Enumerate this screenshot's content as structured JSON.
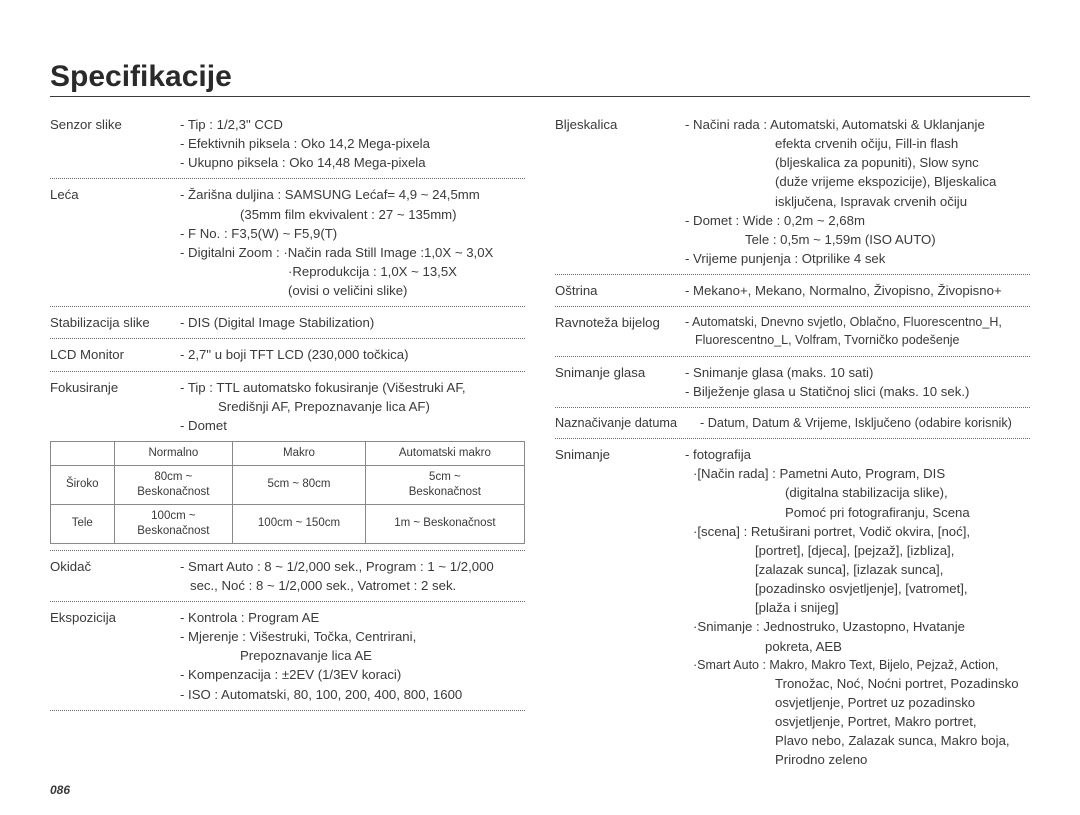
{
  "title": "Specifikacije",
  "page_number": "086",
  "left": {
    "sensor": {
      "label": "Senzor slike",
      "l1": "- Tip : 1/2,3\" CCD",
      "l2": "- Efektivnih piksela : Oko 14,2 Mega-pixela",
      "l3": "- Ukupno piksela : Oko 14,48 Mega-pixela"
    },
    "lens": {
      "label": "Leća",
      "l1": "- Žarišna duljina : SAMSUNG Lećaf= 4,9 ~ 24,5mm",
      "l1b": "(35mm film ekvivalent : 27 ~ 135mm)",
      "l2": "- F No. : F3,5(W) ~ F5,9(T)",
      "l3": "- Digitalni Zoom : ·Način rada Still Image  :1,0X ~ 3,0X",
      "l3b": "·Reprodukcija : 1,0X ~ 13,5X",
      "l3c": "(ovisi o veličini slike)"
    },
    "stab": {
      "label": "Stabilizacija slike",
      "l1": "- DIS (Digital Image Stabilization)"
    },
    "lcd": {
      "label": "LCD Monitor",
      "l1": "- 2,7\" u boji TFT LCD (230,000 točkica)"
    },
    "focus": {
      "label": "Fokusiranje",
      "l1": "- Tip : TTL automatsko fokusiranje (Višestruki AF,",
      "l1b": "Središnji AF, Prepoznavanje lica AF)",
      "l2": "- Domet"
    },
    "focus_table": {
      "headers": [
        "",
        "Normalno",
        "Makro",
        "Automatski makro"
      ],
      "rows": [
        [
          "Široko",
          "80cm ~\nBeskonačnost",
          "5cm ~ 80cm",
          "5cm ~\nBeskonačnost"
        ],
        [
          "Tele",
          "100cm ~\nBeskonačnost",
          "100cm ~ 150cm",
          "1m ~ Beskonačnost"
        ]
      ]
    },
    "shutter": {
      "label": "Okidač",
      "l1": "- Smart Auto : 8 ~ 1/2,000 sek., Program : 1 ~ 1/2,000",
      "l1b": "sec., Noć : 8 ~ 1/2,000 sek., Vatromet : 2 sek."
    },
    "expo": {
      "label": "Ekspozicija",
      "l1": "- Kontrola : Program AE",
      "l2": "- Mjerenje : Višestruki, Točka, Centrirani,",
      "l2b": "Prepoznavanje lica AE",
      "l3": "- Kompenzacija : ±2EV (1/3EV koraci)",
      "l4": "- ISO : Automatski, 80, 100, 200, 400, 800, 1600"
    }
  },
  "right": {
    "flash": {
      "label": "Bljeskalica",
      "l1": "- Načini rada : Automatski, Automatski & Uklanjanje",
      "l1b": "efekta crvenih očiju, Fill-in flash",
      "l1c": "(bljeskalica za popuniti), Slow sync",
      "l1d": "(duže vrijeme ekspozicije), Bljeskalica",
      "l1e": "isključena, Ispravak crvenih očiju",
      "l2": "- Domet : Wide : 0,2m ~ 2,68m",
      "l2b": "Tele : 0,5m ~ 1,59m (ISO AUTO)",
      "l3": "- Vrijeme punjenja : Otprilike 4 sek"
    },
    "sharp": {
      "label": "Oštrina",
      "l1": "- Mekano+, Mekano, Normalno, Živopisno, Živopisno+"
    },
    "wb": {
      "label": "Ravnoteža bijelog",
      "l1": "- Automatski, Dnevno svjetlo, Oblačno, Fluorescentno_H,",
      "l1b": "Fluorescentno_L, Volfram, Tvorničko podešenje"
    },
    "voice": {
      "label": "Snimanje glasa",
      "l1": "- Snimanje glasa (maks. 10 sati)",
      "l2": "- Bilježenje glasa u Statičnoj slici (maks. 10 sek.)"
    },
    "date": {
      "label": "Naznačivanje datuma",
      "l1": "- Datum, Datum & Vrijeme, Isključeno (odabire korisnik)"
    },
    "shoot": {
      "label": "Snimanje",
      "l1": "- fotografija",
      "l2": "·[Način rada] : Pametni Auto, Program, DIS",
      "l2b": "(digitalna stabilizacija slike),",
      "l2c": "Pomoć pri fotografiranju, Scena",
      "l3": "·[scena] : Retuširani portret, Vodič okvira, [noć],",
      "l3b": "[portret], [djeca], [pejzaž], [izbliza],",
      "l3c": "[zalazak sunca], [izlazak sunca],",
      "l3d": "[pozadinsko osvjetljenje], [vatromet],",
      "l3e": "[plaža i snijeg]",
      "l4": "·Snimanje : Jednostruko, Uzastopno, Hvatanje",
      "l4b": "pokreta, AEB",
      "l5": "·Smart Auto : Makro, Makro Text, Bijelo, Pejzaž, Action,",
      "l5b": "Tronožac, Noć, Noćni portret, Pozadinsko",
      "l5c": "osvjetljenje, Portret uz pozadinsko",
      "l5d": "osvjetljenje, Portret, Makro portret,",
      "l5e": "Plavo nebo, Zalazak sunca, Makro boja,",
      "l5f": "Prirodno zeleno"
    }
  }
}
